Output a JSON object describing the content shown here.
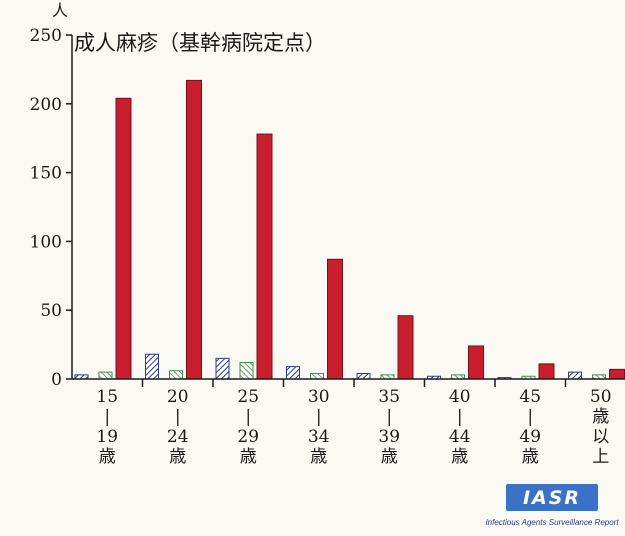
{
  "chart_data": {
    "type": "bar",
    "title": "成人麻疹（基幹病院定点）",
    "unit_label": "人",
    "ylim": [
      0,
      250
    ],
    "yticks": [
      0,
      50,
      100,
      150,
      200,
      250
    ],
    "grid": false,
    "categories": [
      [
        "15",
        "|",
        "19",
        "歳"
      ],
      [
        "20",
        "|",
        "24",
        "歳"
      ],
      [
        "25",
        "|",
        "29",
        "歳"
      ],
      [
        "30",
        "|",
        "34",
        "歳"
      ],
      [
        "35",
        "|",
        "39",
        "歳"
      ],
      [
        "40",
        "|",
        "44",
        "歳"
      ],
      [
        "45",
        "|",
        "49",
        "歳"
      ],
      [
        "50",
        "歳",
        "以",
        "上"
      ]
    ],
    "series": [
      {
        "pattern": "hatched-blue",
        "color": "#2b3b8f",
        "values": [
          3,
          18,
          15,
          9,
          4,
          2,
          1,
          5
        ]
      },
      {
        "pattern": "hatched-green",
        "color": "#3e8f4a",
        "values": [
          5,
          6,
          12,
          4,
          3,
          3,
          2,
          3
        ]
      },
      {
        "pattern": "solid-red",
        "color": "#c81e2d",
        "values": [
          204,
          217,
          178,
          87,
          46,
          24,
          11,
          7
        ]
      }
    ]
  },
  "logo": {
    "text": "IASR",
    "subtitle": "Infectious Agents Surveillance Report",
    "color": "#3a72c8"
  }
}
